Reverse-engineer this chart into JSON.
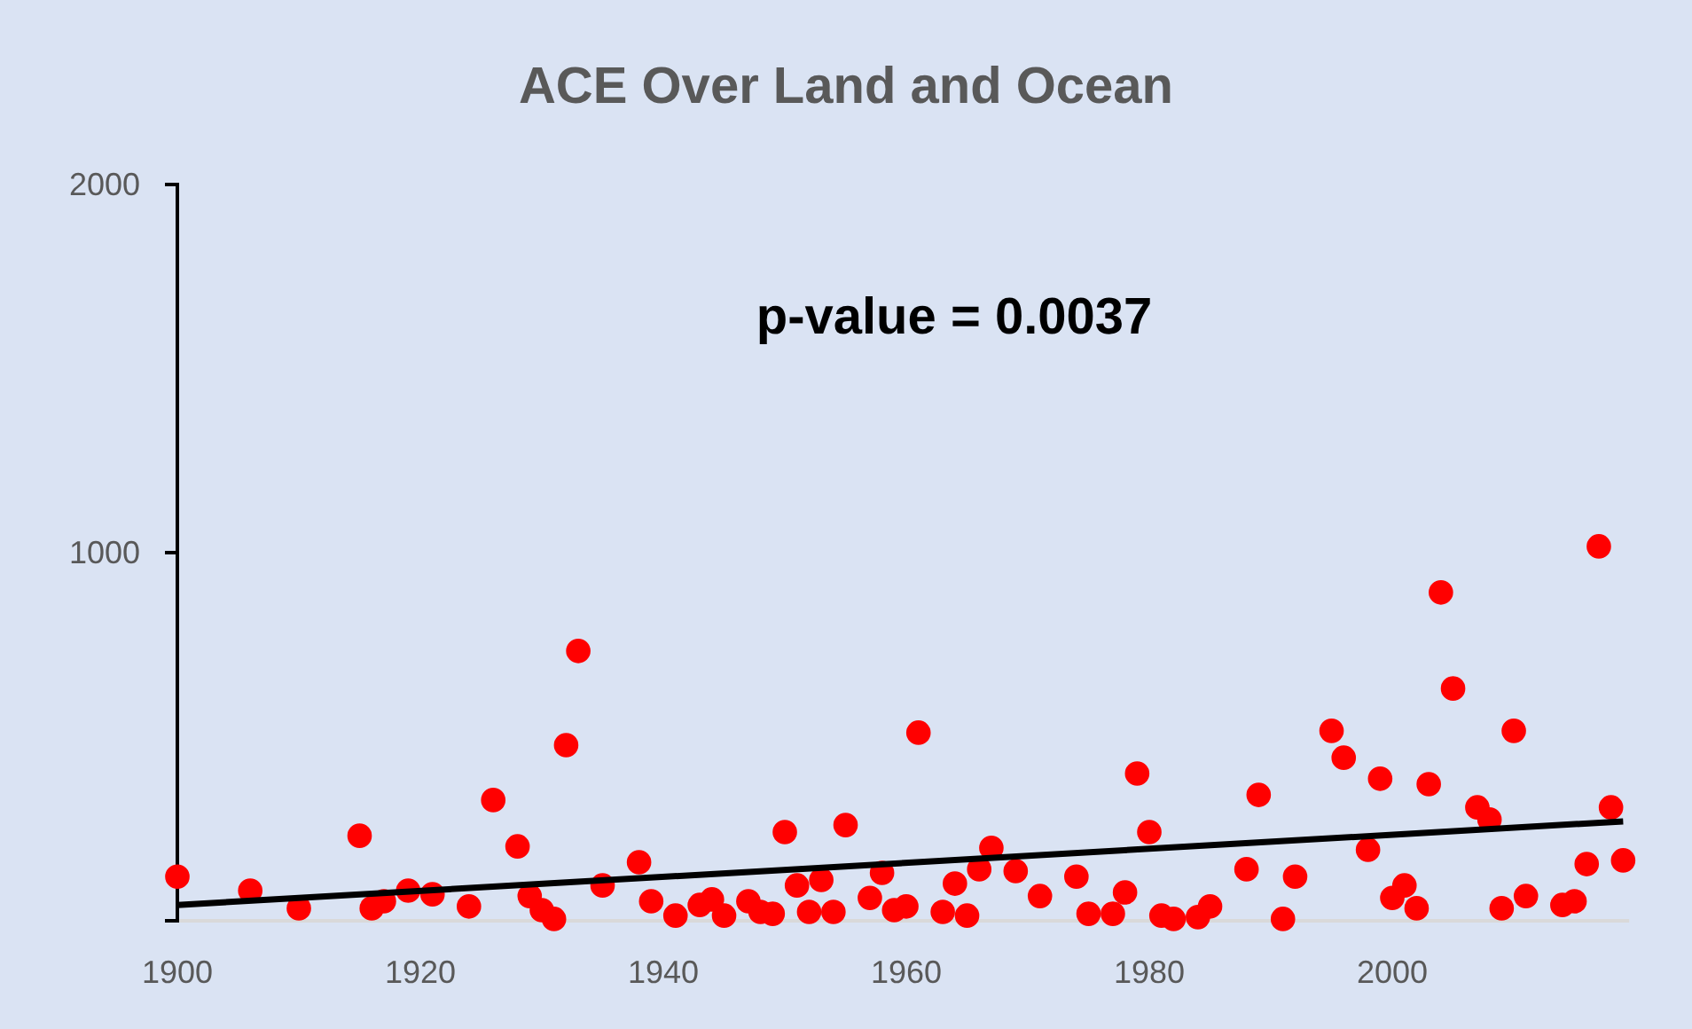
{
  "chart_data": {
    "type": "scatter",
    "title": "ACE Over Land and Ocean",
    "annotations": [
      "p-value = 0.0037"
    ],
    "xlim": [
      1900,
      2019.5
    ],
    "xticks": [
      1900,
      1920,
      1940,
      1960,
      1980,
      2000
    ],
    "ylim": [
      0,
      2000
    ],
    "yticks": [
      {
        "value": 0,
        "label": null
      },
      1000,
      2000
    ],
    "grid": false,
    "marker": "circle",
    "series": [
      {
        "color": "#ff0000",
        "x": [
          1900,
          1906,
          1910,
          1915,
          1916,
          1917,
          1919,
          1921,
          1924,
          1926,
          1928,
          1929,
          1930,
          1931,
          1932,
          1933,
          1935,
          1938,
          1939,
          1941,
          1943,
          1944,
          1945,
          1947,
          1948,
          1949,
          1950,
          1951,
          1952,
          1953,
          1954,
          1955,
          1957,
          1958,
          1959,
          1960,
          1961,
          1963,
          1964,
          1965,
          1966,
          1967,
          1969,
          1971,
          1974,
          1975,
          1977,
          1978,
          1979,
          1980,
          1981,
          1982,
          1984,
          1985,
          1988,
          1989,
          1991,
          1992,
          1995,
          1996,
          1998,
          1999,
          2000,
          2001,
          2002,
          2003,
          2004,
          2005,
          2007,
          2008,
          2009,
          2010,
          2011,
          2014,
          2015,
          2016,
          2017,
          2018,
          2019
        ],
        "values": [
          120,
          82,
          34,
          231,
          34,
          53,
          82,
          72,
          39,
          328,
          202,
          67,
          29,
          5,
          477,
          733,
          96,
          159,
          53,
          14,
          43,
          58,
          14,
          53,
          24,
          19,
          241,
          96,
          24,
          111,
          24,
          260,
          62,
          130,
          29,
          39,
          511,
          24,
          101,
          14,
          140,
          198,
          135,
          67,
          120,
          19,
          19,
          77,
          400,
          241,
          14,
          5,
          10,
          39,
          140,
          342,
          5,
          120,
          516,
          443,
          193,
          386,
          62,
          96,
          34,
          371,
          892,
          631,
          308,
          275,
          34,
          516,
          67,
          43,
          53,
          154,
          1017,
          308,
          164
        ]
      },
      {
        "type": "line",
        "color": "#000000",
        "line_style": "solid",
        "marker": "none",
        "x": [
          1900,
          2019
        ],
        "values": [
          43,
          270
        ]
      }
    ]
  }
}
